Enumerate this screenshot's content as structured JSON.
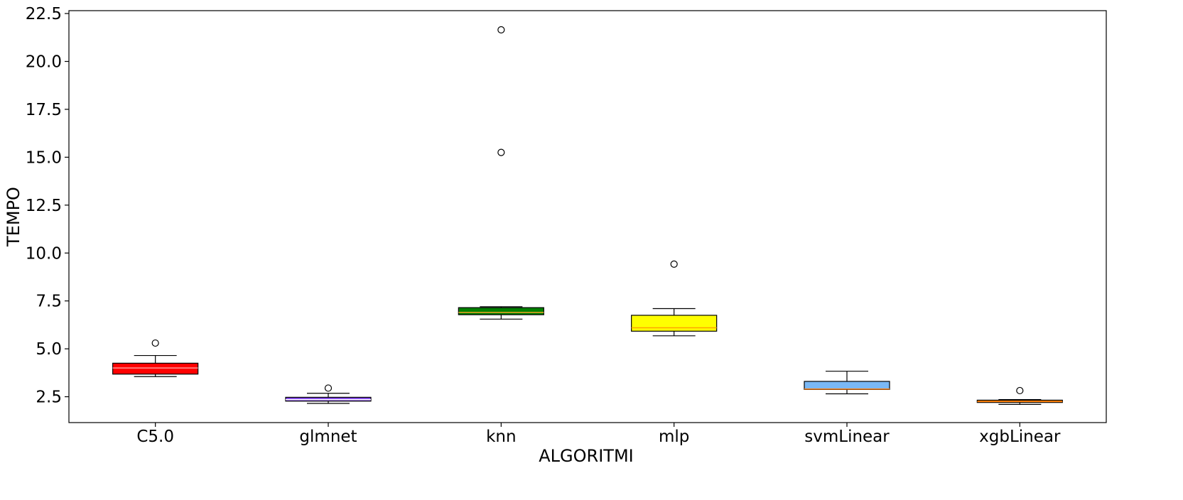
{
  "chart_data": {
    "type": "box",
    "xlabel": "ALGORITMI",
    "ylabel": "TEMPO",
    "ylim": [
      1.15,
      22.65
    ],
    "y_ticks": [
      "2.5",
      "5.0",
      "7.5",
      "10.0",
      "12.5",
      "15.0",
      "17.5",
      "20.0",
      "22.5"
    ],
    "grid": false,
    "categories": [
      "C5.0",
      "glmnet",
      "knn",
      "mlp",
      "svmLinear",
      "xgbLinear"
    ],
    "boxes": [
      {
        "category": "C5.0",
        "whisker_low": 3.55,
        "q1": 3.68,
        "median": 4.0,
        "q3": 4.25,
        "whisker_high": 4.65,
        "outliers": [
          5.3
        ],
        "fill": "#ff0000",
        "median_color": "#ff9a9a"
      },
      {
        "category": "glmnet",
        "whisker_low": 2.15,
        "q1": 2.27,
        "median": 2.35,
        "q3": 2.47,
        "whisker_high": 2.68,
        "outliers": [
          2.95
        ],
        "fill": "#7b3fe4",
        "median_color": "#ffffff"
      },
      {
        "category": "knn",
        "whisker_low": 6.55,
        "q1": 6.78,
        "median": 6.9,
        "q3": 7.15,
        "whisker_high": 7.2,
        "outliers": [
          15.25,
          21.65
        ],
        "fill": "#008000",
        "median_color": "#f5a623"
      },
      {
        "category": "mlp",
        "whisker_low": 5.68,
        "q1": 5.92,
        "median": 6.1,
        "q3": 6.75,
        "whisker_high": 7.1,
        "outliers": [
          9.42
        ],
        "fill": "#ffff00",
        "median_color": "#ffa500"
      },
      {
        "category": "svmLinear",
        "whisker_low": 2.65,
        "q1": 2.88,
        "median": 2.9,
        "q3": 3.3,
        "whisker_high": 3.83,
        "outliers": [],
        "fill": "#7ab8f5",
        "median_color": "#ff7f0e"
      },
      {
        "category": "xgbLinear",
        "whisker_low": 2.1,
        "q1": 2.2,
        "median": 2.25,
        "q3": 2.32,
        "whisker_high": 2.35,
        "outliers": [
          2.82
        ],
        "fill": "#ff8c00",
        "median_color": "#ff7f0e"
      }
    ]
  }
}
